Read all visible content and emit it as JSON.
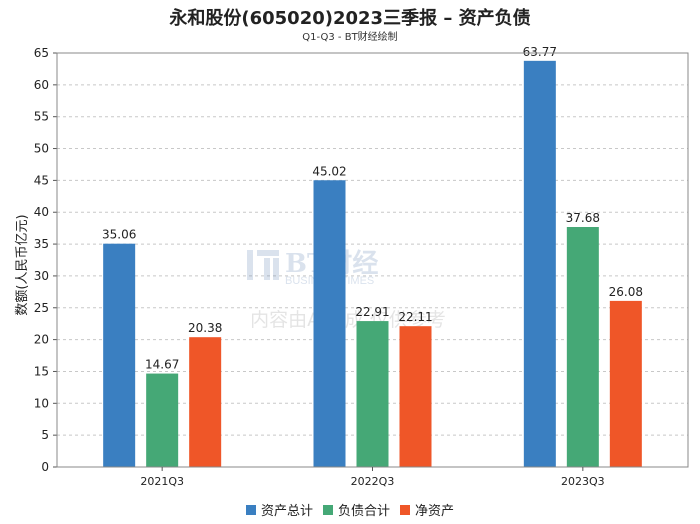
{
  "chart_data": {
    "type": "bar",
    "title": "永和股份(605020)2023三季报 – 资产负债",
    "subtitle": "Q1-Q3 - BT财经绘制",
    "ylabel": "数额(人民币亿元)",
    "xlabel": "",
    "categories": [
      "2021Q3",
      "2022Q3",
      "2023Q3"
    ],
    "ylim": [
      0,
      65
    ],
    "yticks": [
      0,
      5,
      10,
      15,
      20,
      25,
      30,
      35,
      40,
      45,
      50,
      55,
      60,
      65
    ],
    "grid": true,
    "legend_position": "bottom",
    "series": [
      {
        "name": "资产总计",
        "color": "#3a7fc1",
        "values": [
          35.06,
          45.02,
          63.77
        ]
      },
      {
        "name": "负债合计",
        "color": "#45a876",
        "values": [
          14.67,
          22.91,
          37.68
        ]
      },
      {
        "name": "净资产",
        "color": "#ef5628",
        "values": [
          20.38,
          22.11,
          26.08
        ]
      }
    ]
  },
  "watermark": {
    "logo_text": "BT财经",
    "logo_sub": "BUSINESSTIMES",
    "notice": "内容由AI生成,仅供参考"
  }
}
